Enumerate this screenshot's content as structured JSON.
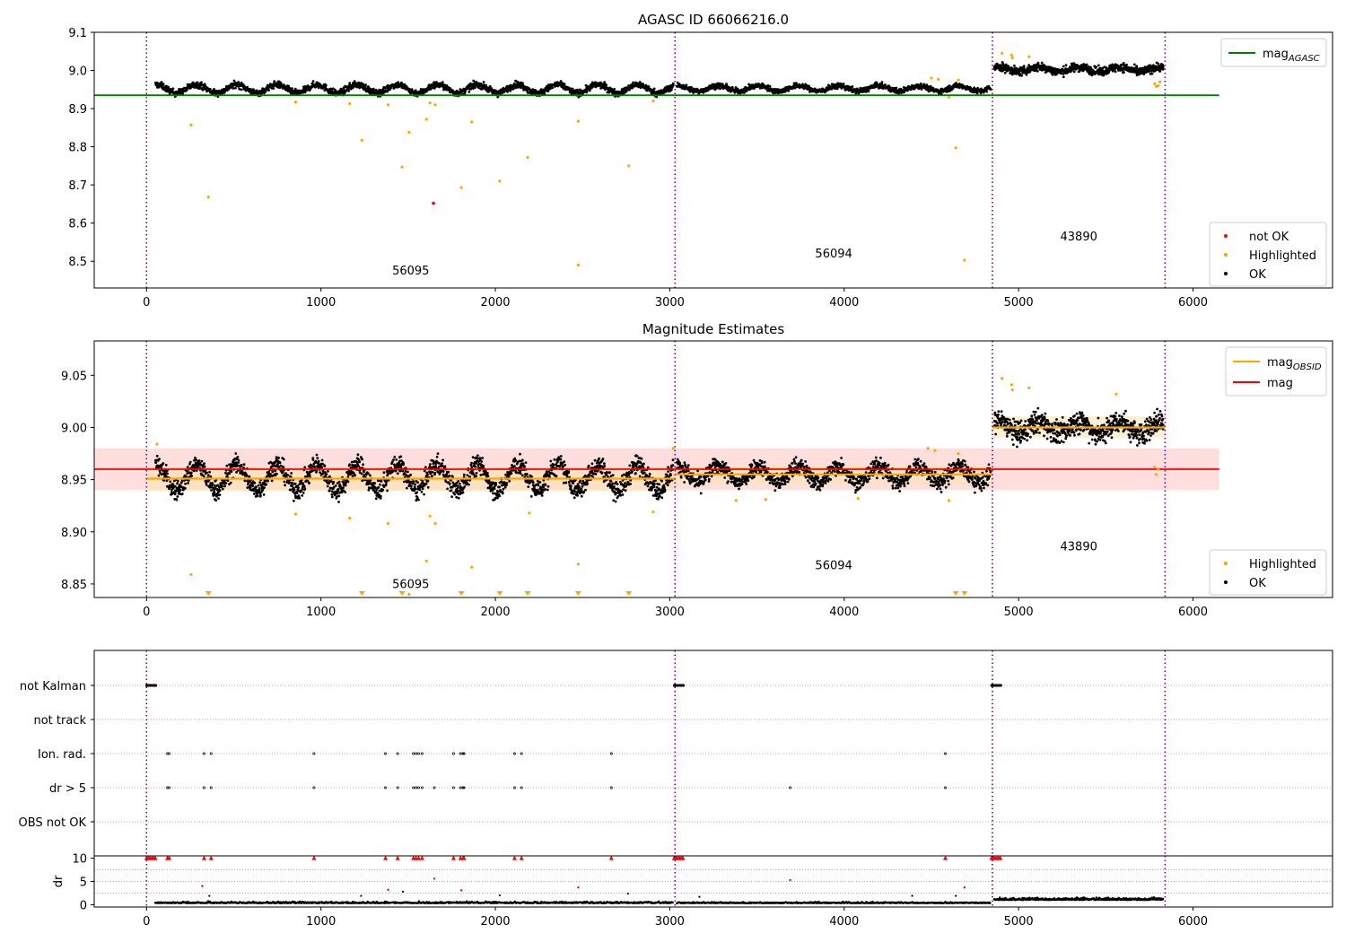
{
  "figure": {
    "background": "#ffffff"
  },
  "colors": {
    "ok": "#000000",
    "highlighted": "#ffa500",
    "not_ok": "#ff0000",
    "mag_agasc": "#008000",
    "mag_obsid": "#ffa500",
    "mag": "#ff0000",
    "band_mag": "#ffd6d6",
    "band_obsid": "#ffe4b0",
    "obs_boundary": "#800080",
    "grid": "#b0b0b0"
  },
  "chart_data": [
    {
      "type": "scatter",
      "title": "AGASC ID 66066216.0",
      "xlabel": "",
      "ylabel": "",
      "xlim": [
        -300,
        6800
      ],
      "ylim": [
        8.43,
        9.1
      ],
      "xticks": [
        "0",
        "1000",
        "2000",
        "3000",
        "4000",
        "5000",
        "6000"
      ],
      "xtick_values": [
        0,
        1000,
        2000,
        3000,
        4000,
        5000,
        6000
      ],
      "yticks": [
        "8.5",
        "8.6",
        "8.7",
        "8.8",
        "8.9",
        "9.0",
        "9.1"
      ],
      "ytick_values": [
        8.5,
        8.6,
        8.7,
        8.8,
        8.9,
        9.0,
        9.1
      ],
      "grid": false,
      "legend_upper": {
        "placement": "top-right",
        "entries": [
          {
            "label": "mag",
            "sub": "AGASC",
            "kind": "line",
            "color": "#008000"
          }
        ]
      },
      "legend_lower": {
        "placement": "bottom-right",
        "entries": [
          {
            "label": "not OK",
            "kind": "dot",
            "color": "#ff0000"
          },
          {
            "label": "Highlighted",
            "kind": "dot",
            "color": "#ffa500"
          },
          {
            "label": "OK",
            "kind": "dot",
            "color": "#000000"
          }
        ]
      },
      "obs_boundaries": [
        0,
        3030,
        4850,
        5840
      ],
      "obs_labels": [
        {
          "text": "56095",
          "x": 1515,
          "y": 8.465
        },
        {
          "text": "56094",
          "x": 3940,
          "y": 8.51
        },
        {
          "text": "43890",
          "x": 5345,
          "y": 8.555
        }
      ],
      "reference_lines": [
        {
          "name": "mag_AGASC",
          "y": 8.935,
          "x": [
            -300,
            6150
          ],
          "color": "#008000"
        }
      ],
      "ok_segments": [
        {
          "x": [
            50,
            3020
          ],
          "mean": 8.952,
          "amp": 0.011,
          "noise": 0.006,
          "count": 1900
        },
        {
          "x": [
            3040,
            4840
          ],
          "mean": 8.953,
          "amp": 0.007,
          "noise": 0.005,
          "count": 1100
        },
        {
          "x": [
            4860,
            5830
          ],
          "mean": 9.003,
          "amp": 0.006,
          "noise": 0.008,
          "count": 700
        }
      ],
      "highlighted": [
        {
          "x": 255,
          "y": 8.857
        },
        {
          "x": 355,
          "y": 8.668
        },
        {
          "x": 855,
          "y": 8.917
        },
        {
          "x": 1165,
          "y": 8.913
        },
        {
          "x": 1235,
          "y": 8.817
        },
        {
          "x": 1385,
          "y": 8.91
        },
        {
          "x": 1465,
          "y": 8.747
        },
        {
          "x": 1505,
          "y": 8.838
        },
        {
          "x": 1605,
          "y": 8.872
        },
        {
          "x": 1625,
          "y": 8.915
        },
        {
          "x": 1655,
          "y": 8.91
        },
        {
          "x": 1805,
          "y": 8.693
        },
        {
          "x": 1865,
          "y": 8.865
        },
        {
          "x": 2025,
          "y": 8.71
        },
        {
          "x": 2185,
          "y": 8.772
        },
        {
          "x": 2475,
          "y": 8.867
        },
        {
          "x": 2475,
          "y": 8.49
        },
        {
          "x": 2765,
          "y": 8.75
        },
        {
          "x": 2905,
          "y": 8.92
        },
        {
          "x": 4500,
          "y": 8.98
        },
        {
          "x": 4540,
          "y": 8.977
        },
        {
          "x": 4600,
          "y": 8.93
        },
        {
          "x": 4640,
          "y": 8.797
        },
        {
          "x": 4690,
          "y": 8.503
        },
        {
          "x": 4655,
          "y": 8.975
        },
        {
          "x": 4905,
          "y": 9.045
        },
        {
          "x": 4960,
          "y": 9.04
        },
        {
          "x": 4965,
          "y": 9.033
        },
        {
          "x": 5060,
          "y": 9.036
        },
        {
          "x": 5780,
          "y": 8.965
        },
        {
          "x": 5790,
          "y": 8.958
        },
        {
          "x": 5800,
          "y": 8.96
        },
        {
          "x": 5810,
          "y": 8.97
        }
      ],
      "not_ok": [
        {
          "x": 1645,
          "y": 8.652
        }
      ]
    },
    {
      "type": "scatter",
      "title": "Magnitude Estimates",
      "xlabel": "",
      "ylabel": "",
      "xlim": [
        -300,
        6800
      ],
      "ylim": [
        8.837,
        9.083
      ],
      "xticks": [
        "0",
        "1000",
        "2000",
        "3000",
        "4000",
        "5000",
        "6000"
      ],
      "xtick_values": [
        0,
        1000,
        2000,
        3000,
        4000,
        5000,
        6000
      ],
      "yticks": [
        "8.85",
        "8.90",
        "8.95",
        "9.00",
        "9.05"
      ],
      "ytick_values": [
        8.85,
        8.9,
        8.95,
        9.0,
        9.05
      ],
      "grid": false,
      "legend_upper": {
        "placement": "top-right",
        "entries": [
          {
            "label": "mag",
            "sub": "OBSID",
            "kind": "line",
            "color": "#ffa500"
          },
          {
            "label": "mag",
            "sub": "",
            "kind": "line",
            "color": "#ff0000"
          }
        ]
      },
      "legend_lower": {
        "placement": "bottom-right",
        "entries": [
          {
            "label": "Highlighted",
            "kind": "dot",
            "color": "#ffa500"
          },
          {
            "label": "OK",
            "kind": "dot",
            "color": "#000000"
          }
        ]
      },
      "obs_boundaries": [
        0,
        3030,
        4850,
        5840
      ],
      "obs_labels": [
        {
          "text": "56095",
          "x": 1515,
          "y": 8.846
        },
        {
          "text": "56094",
          "x": 3940,
          "y": 8.864
        },
        {
          "text": "43890",
          "x": 5345,
          "y": 8.882
        }
      ],
      "mag_band": {
        "y": [
          8.94,
          8.98
        ],
        "x": [
          -300,
          6150
        ]
      },
      "obsid_bands": [
        {
          "x": [
            0,
            3030
          ],
          "y": [
            8.939,
            8.962
          ]
        },
        {
          "x": [
            3030,
            4850
          ],
          "y": [
            8.945,
            8.965
          ]
        },
        {
          "x": [
            4850,
            5840
          ],
          "y": [
            8.99,
            9.011
          ]
        }
      ],
      "reference_lines": [
        {
          "name": "mag",
          "y": 8.96,
          "x": [
            -300,
            6150
          ],
          "color": "#ff0000"
        }
      ],
      "obsid_lines": [
        {
          "x": [
            0,
            3030
          ],
          "y": 8.951
        },
        {
          "x": [
            3030,
            4850
          ],
          "y": 8.955
        },
        {
          "x": [
            4850,
            5840
          ],
          "y": 9.0
        }
      ],
      "ok_segments": [
        {
          "x": [
            50,
            3020
          ],
          "mean": 8.952,
          "amp": 0.012,
          "noise": 0.007,
          "count": 1900
        },
        {
          "x": [
            3040,
            4840
          ],
          "mean": 8.955,
          "amp": 0.008,
          "noise": 0.006,
          "count": 1100
        },
        {
          "x": [
            4860,
            5830
          ],
          "mean": 9.0,
          "amp": 0.006,
          "noise": 0.008,
          "count": 700
        }
      ],
      "highlighted": [
        {
          "x": 60,
          "y": 8.984
        },
        {
          "x": 255,
          "y": 8.859
        },
        {
          "x": 855,
          "y": 8.917
        },
        {
          "x": 1165,
          "y": 8.913
        },
        {
          "x": 1385,
          "y": 8.908
        },
        {
          "x": 1505,
          "y": 8.84
        },
        {
          "x": 1605,
          "y": 8.872
        },
        {
          "x": 1625,
          "y": 8.915
        },
        {
          "x": 1655,
          "y": 8.908
        },
        {
          "x": 1865,
          "y": 8.866
        },
        {
          "x": 2195,
          "y": 8.918
        },
        {
          "x": 2475,
          "y": 8.869
        },
        {
          "x": 2905,
          "y": 8.919
        },
        {
          "x": 3020,
          "y": 8.98
        },
        {
          "x": 3380,
          "y": 8.93
        },
        {
          "x": 3550,
          "y": 8.931
        },
        {
          "x": 4080,
          "y": 8.932
        },
        {
          "x": 4480,
          "y": 8.98
        },
        {
          "x": 4520,
          "y": 8.978
        },
        {
          "x": 4600,
          "y": 8.93
        },
        {
          "x": 4655,
          "y": 8.975
        },
        {
          "x": 4905,
          "y": 9.047
        },
        {
          "x": 4960,
          "y": 9.041
        },
        {
          "x": 4965,
          "y": 9.036
        },
        {
          "x": 5060,
          "y": 9.038
        },
        {
          "x": 5560,
          "y": 9.032
        },
        {
          "x": 5780,
          "y": 8.962
        },
        {
          "x": 5790,
          "y": 8.955
        },
        {
          "x": 5800,
          "y": 8.96
        }
      ],
      "below_range_markers": [
        355,
        1235,
        1465,
        1805,
        2025,
        2185,
        2475,
        2765,
        4640,
        4690
      ]
    },
    {
      "type": "scatter",
      "title": "",
      "xlabel": "",
      "xlim": [
        -300,
        6800
      ],
      "categories": [
        "not Kalman",
        "not track",
        "Ion. rad.",
        "dr > 5",
        "OBS not OK"
      ],
      "flags": {
        "not Kalman": [
          [
            0,
            55
          ],
          [
            3025,
            3080
          ],
          [
            4845,
            4900
          ]
        ],
        "not track": [],
        "Ion. rad.": [
          120,
          130,
          330,
          370,
          960,
          1370,
          1440,
          1530,
          1545,
          1560,
          1580,
          1760,
          1800,
          1815,
          1820,
          2110,
          2150,
          2665,
          4580
        ],
        "dr > 5": [
          120,
          130,
          330,
          370,
          960,
          1370,
          1440,
          1530,
          1545,
          1560,
          1580,
          1650,
          1760,
          1800,
          1815,
          1820,
          2110,
          2150,
          2665,
          3690,
          4580
        ],
        "OBS not OK": []
      },
      "obs_boundaries": [
        0,
        3030,
        4850,
        5840
      ]
    },
    {
      "type": "scatter",
      "title": "",
      "xlabel": "",
      "ylabel": "dr",
      "xlim": [
        -300,
        6800
      ],
      "ylim": [
        -0.5,
        10.5
      ],
      "xticks": [
        "0",
        "1000",
        "2000",
        "3000",
        "4000",
        "5000",
        "6000"
      ],
      "xtick_values": [
        0,
        1000,
        2000,
        3000,
        4000,
        5000,
        6000
      ],
      "yticks": [
        "0",
        "5",
        "10"
      ],
      "ytick_values": [
        0,
        5,
        10
      ],
      "grid_y": [
        2.5,
        5,
        7.5
      ],
      "obs_boundaries": [
        0,
        3030,
        4850,
        5840
      ],
      "clipped_at_10": [
        0,
        10,
        20,
        30,
        40,
        50,
        120,
        130,
        330,
        370,
        960,
        1370,
        1440,
        1530,
        1545,
        1560,
        1580,
        1760,
        1800,
        1815,
        1820,
        2110,
        2150,
        2665,
        3025,
        3035,
        3045,
        3055,
        3065,
        3075,
        4580,
        4845,
        4855,
        4865,
        4875,
        4885,
        4895
      ],
      "red_points": [
        {
          "x": 320,
          "y": 4.0
        },
        {
          "x": 1385,
          "y": 3.2
        },
        {
          "x": 1650,
          "y": 5.6
        },
        {
          "x": 1805,
          "y": 3.1
        },
        {
          "x": 2475,
          "y": 3.7
        },
        {
          "x": 3690,
          "y": 5.3
        },
        {
          "x": 4690,
          "y": 3.7
        }
      ],
      "black_outliers": [
        {
          "x": 360,
          "y": 1.9
        },
        {
          "x": 1230,
          "y": 1.9
        },
        {
          "x": 1470,
          "y": 2.8
        },
        {
          "x": 2025,
          "y": 2.0
        },
        {
          "x": 2760,
          "y": 2.4
        },
        {
          "x": 3170,
          "y": 1.7
        },
        {
          "x": 4390,
          "y": 1.9
        },
        {
          "x": 4640,
          "y": 1.9
        }
      ],
      "ok_segments": [
        {
          "x": [
            50,
            3020
          ],
          "mean": 0.3,
          "noise": 0.25,
          "count": 900
        },
        {
          "x": [
            3040,
            4840
          ],
          "mean": 0.3,
          "noise": 0.2,
          "count": 550
        },
        {
          "x": [
            4860,
            5830
          ],
          "mean": 1.0,
          "noise": 0.35,
          "count": 420
        }
      ]
    }
  ]
}
